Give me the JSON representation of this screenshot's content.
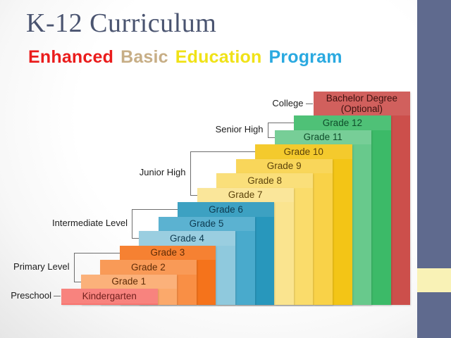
{
  "slide": {
    "title": "K-12 Curriculum",
    "subtitle_parts": [
      {
        "text": "Enhanced",
        "color": "#EA1C1C"
      },
      {
        "text": "Basic",
        "color": "#C7AE86"
      },
      {
        "text": "Education",
        "color": "#F0E217"
      },
      {
        "text": "Program",
        "color": "#2AA9E0"
      }
    ]
  },
  "diagram": {
    "steps": [
      {
        "label": "Kindergarten",
        "color": "#F87570",
        "text_color": "#71201D"
      },
      {
        "label": "Grade 1",
        "color": "#FBA96B",
        "text_color": "#5F2C07"
      },
      {
        "label": "Grade 2",
        "color": "#F98F45",
        "text_color": "#5F2C07"
      },
      {
        "label": "Grade 3",
        "color": "#F5731B",
        "text_color": "#5F2C07"
      },
      {
        "label": "Grade 4",
        "color": "#8FC9DD",
        "text_color": "#0D3A50"
      },
      {
        "label": "Grade 5",
        "color": "#49AACC",
        "text_color": "#0D3A50"
      },
      {
        "label": "Grade 6",
        "color": "#2897BC",
        "text_color": "#0D3A50"
      },
      {
        "label": "Grade 7",
        "color": "#FAE48F",
        "text_color": "#5C430A"
      },
      {
        "label": "Grade 8",
        "color": "#FADC6B",
        "text_color": "#5C430A"
      },
      {
        "label": "Grade 9",
        "color": "#F9D248",
        "text_color": "#5C430A"
      },
      {
        "label": "Grade 10",
        "color": "#F3C516",
        "text_color": "#5C430A"
      },
      {
        "label": "Grade 11",
        "color": "#68C98C",
        "text_color": "#0F4D2B"
      },
      {
        "label": "Grade 12",
        "color": "#3CBA68",
        "text_color": "#0F4D2B"
      },
      {
        "label": "Bachelor Degree",
        "label2": "(Optional)",
        "color": "#CC4F4B",
        "text_color": "#3F1210"
      }
    ],
    "stages": [
      {
        "label": "Preschool",
        "type": "dash",
        "from": 0,
        "to": 0
      },
      {
        "label": "Primary Level",
        "type": "bracket",
        "from": 1,
        "to": 3
      },
      {
        "label": "Intermediate Level",
        "type": "bracket",
        "from": 4,
        "to": 6
      },
      {
        "label": "Junior High",
        "type": "bracket",
        "from": 7,
        "to": 10
      },
      {
        "label": "Senior High",
        "type": "bracket",
        "from": 11,
        "to": 12
      },
      {
        "label": "College",
        "type": "dash",
        "from": 13,
        "to": 13
      }
    ]
  },
  "side_panel": {
    "band_color": "#5F6A8E",
    "accent_color": "#F9F2B6"
  }
}
